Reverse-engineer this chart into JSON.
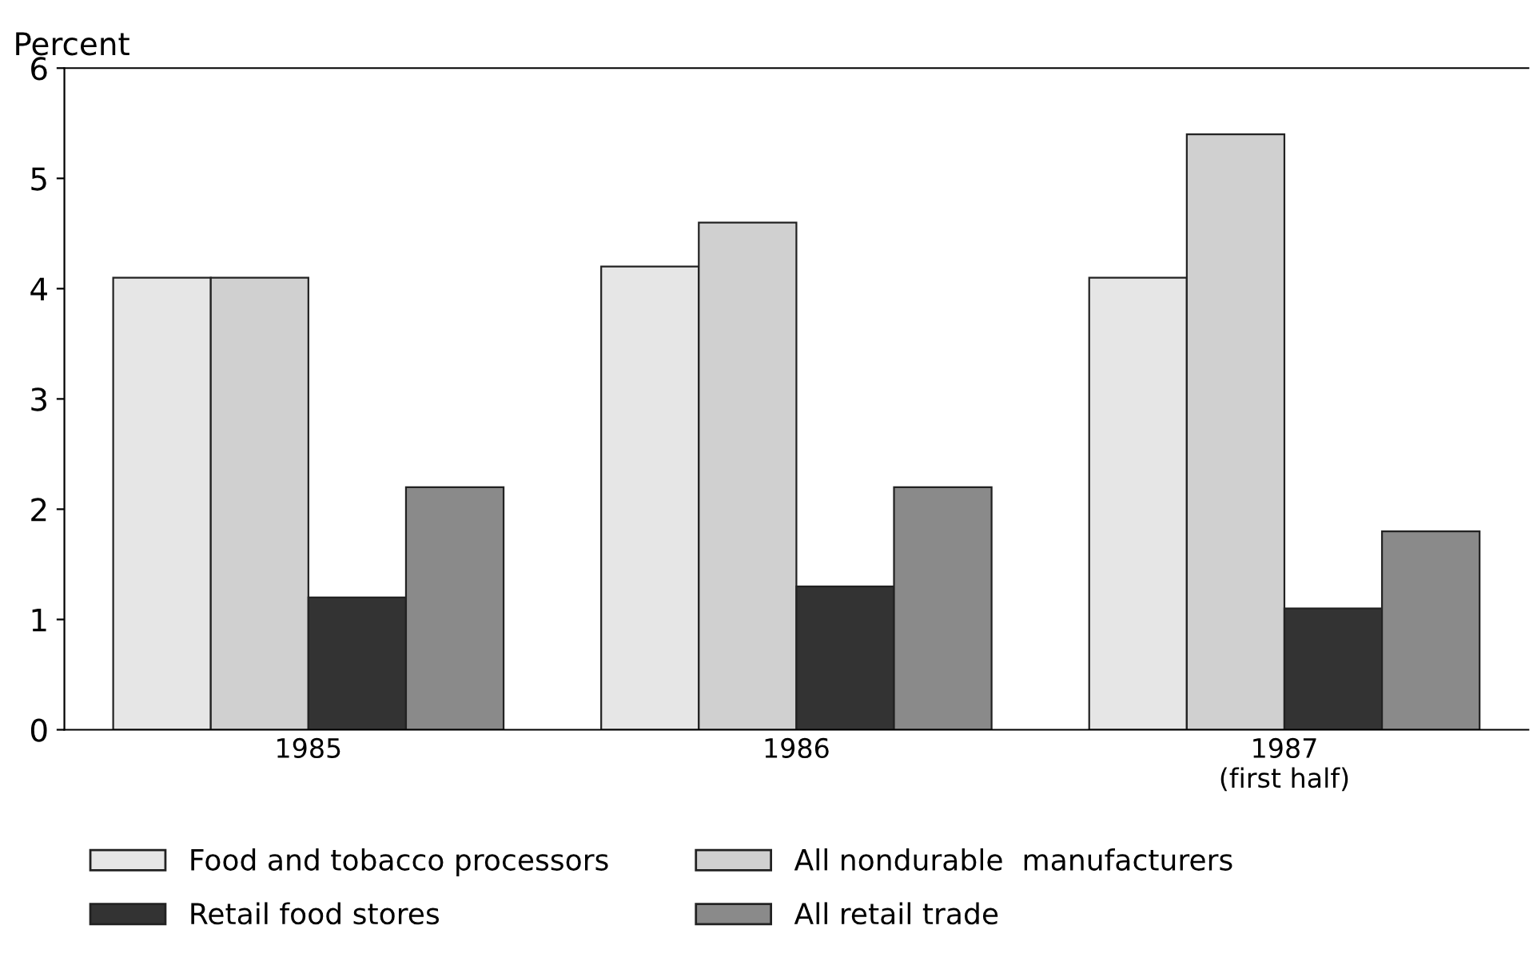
{
  "chart_data": {
    "type": "bar",
    "ylabel": "Percent",
    "categories": [
      "1985",
      "1986",
      "1987\n(first half)"
    ],
    "series": [
      {
        "name": "Food and tobacco processors",
        "color": "#e6e6e6",
        "values": [
          4.1,
          4.2,
          4.1
        ]
      },
      {
        "name": "All nondurable  manufacturers",
        "color": "#d0d0d0",
        "values": [
          4.1,
          4.6,
          5.4
        ]
      },
      {
        "name": "Retail food stores",
        "color": "#333333",
        "values": [
          1.2,
          1.3,
          1.1
        ]
      },
      {
        "name": "All retail trade",
        "color": "#8a8a8a",
        "values": [
          2.2,
          2.2,
          1.8
        ]
      }
    ],
    "ylim": [
      0,
      6
    ],
    "yticks": [
      0,
      1,
      2,
      3,
      4,
      5,
      6
    ],
    "grid": false,
    "legend": "bottom"
  }
}
